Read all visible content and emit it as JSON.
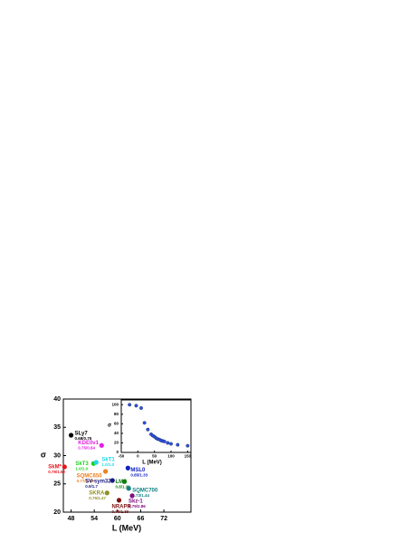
{
  "chart_data": [
    {
      "type": "scatter",
      "xlabel": "L (MeV)",
      "ylabel": "σ",
      "xlim": [
        46,
        79
      ],
      "xticks": [
        48,
        54,
        60,
        66,
        72
      ],
      "ylim": [
        20,
        40
      ],
      "yticks": [
        20,
        25,
        30,
        35,
        40
      ],
      "series": [
        {
          "name": "SLy7",
          "annotation": "0.68/0.75",
          "color": "#000000",
          "x": [
            48
          ],
          "values": [
            33.6
          ]
        },
        {
          "name": "SkM*",
          "annotation": "0.79/1.52",
          "color": "#e8141c",
          "x": [
            46.3
          ],
          "values": [
            28
          ]
        },
        {
          "name": "KDE0v1",
          "annotation": "0.75/0.84",
          "color": "#e020e0",
          "x": [
            55.9
          ],
          "values": [
            31.8
          ]
        },
        {
          "name": "SkT3",
          "annotation": "1.0/1.0",
          "color": "#20d020",
          "x": [
            53.8
          ],
          "values": [
            28.6
          ]
        },
        {
          "name": "SkT1",
          "annotation": "1.0/1.0",
          "color": "#20d8e8",
          "x": [
            54.5
          ],
          "values": [
            28.8
          ]
        },
        {
          "name": "SQMC650",
          "annotation": "0.77/1.02",
          "color": "#f08020",
          "x": [
            56.9
          ],
          "values": [
            27.2
          ]
        },
        {
          "name": "SV-sym32",
          "annotation": "0.9/1.7",
          "color": "#1a1a80",
          "x": [
            58.7
          ],
          "values": [
            25.6
          ]
        },
        {
          "name": "LMS",
          "annotation": "0.8/1.32",
          "color": "#108010",
          "x": [
            61.8
          ],
          "values": [
            25.4
          ]
        },
        {
          "name": "MSL0",
          "annotation": "0.85/1.33",
          "color": "#1020c0",
          "x": [
            62.7
          ],
          "values": [
            27.8
          ]
        },
        {
          "name": "SKRA",
          "annotation": "0.75/1.47",
          "color": "#909020",
          "x": [
            57.3
          ],
          "values": [
            23.4
          ]
        },
        {
          "name": "SQMC700",
          "annotation": "0.73/1.44",
          "color": "#108080",
          "x": [
            62.9
          ],
          "values": [
            24.2
          ]
        },
        {
          "name": "Skz-1",
          "annotation": "0.79/2.86",
          "color": "#801080",
          "x": [
            63.8
          ],
          "values": [
            22.9
          ]
        },
        {
          "name": "NRAPR",
          "annotation": "0.70/1.39",
          "color": "#801010",
          "x": [
            60.4
          ],
          "values": [
            22.1
          ]
        }
      ]
    },
    {
      "type": "scatter",
      "xlabel": "L (MeV)",
      "ylabel": "σ",
      "xlim": [
        -50,
        160
      ],
      "xticks": [
        -50,
        0,
        50,
        100,
        150
      ],
      "ylim": [
        0,
        110
      ],
      "yticks": [
        0,
        20,
        40,
        60,
        80,
        100
      ],
      "color": "#3050e0",
      "x": [
        -25,
        -5,
        10,
        20,
        30,
        40,
        45,
        50,
        55,
        60,
        65,
        70,
        75,
        80,
        90,
        100,
        120,
        150
      ],
      "values": [
        100,
        98,
        93,
        62,
        48,
        38,
        35,
        33,
        30,
        28,
        27,
        25,
        24,
        23,
        20,
        18,
        16,
        14
      ]
    }
  ]
}
